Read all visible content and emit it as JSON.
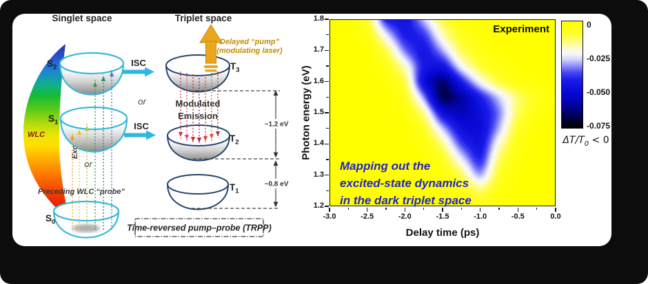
{
  "diagram": {
    "singlet_title": "Singlet space",
    "triplet_title": "Triplet space",
    "isc_label": "ISC",
    "or_label": "or",
    "wlc_label": "WLC",
    "excitation_label": "Excitation",
    "preceding_probe_label": "Preceding WLC “probe”",
    "delayed_pump_line1": "Delayed “pump”",
    "delayed_pump_line2": "(modulating laser)",
    "modulated_line1": "Modulated",
    "modulated_line2": "Emission",
    "gap_t3_t2_label": "~1.2 eV",
    "gap_t2_t1_label": "~0.8 eV",
    "trpp_label": "Time-reversed pump–probe (TRPP)",
    "states": {
      "s2": {
        "base": "S",
        "sub": "2"
      },
      "s1": {
        "base": "S",
        "sub": "1"
      },
      "s0": {
        "base": "S",
        "sub": "0"
      },
      "t3": {
        "base": "T",
        "sub": "3"
      },
      "t2": {
        "base": "T",
        "sub": "2"
      },
      "t1": {
        "base": "T",
        "sub": "1"
      }
    },
    "excitation_rays": [
      {
        "x": 105,
        "y_from": 334,
        "y_to": 197,
        "color": "#f59b22"
      },
      {
        "x": 115,
        "y_from": 334,
        "y_to": 190,
        "color": "#efc31c"
      },
      {
        "x": 126,
        "y_from": 334,
        "y_to": 184,
        "color": "#a6c832"
      },
      {
        "x": 138,
        "y_from": 334,
        "y_to": 120,
        "color": "#2f9e44"
      },
      {
        "x": 150,
        "y_from": 334,
        "y_to": 112,
        "color": "#1f8a70"
      },
      {
        "x": 162,
        "y_from": 334,
        "y_to": 105,
        "color": "#4f74c9"
      }
    ],
    "emission_rays": [
      {
        "x": 262,
        "y_from": 104,
        "y_to": 198,
        "color": "#cc3b3b"
      },
      {
        "x": 271,
        "y_from": 106,
        "y_to": 202,
        "color": "#e0447a"
      },
      {
        "x": 280,
        "y_from": 108,
        "y_to": 205,
        "color": "#d62828"
      },
      {
        "x": 289,
        "y_from": 109,
        "y_to": 206,
        "color": "#c2185b"
      },
      {
        "x": 298,
        "y_from": 108,
        "y_to": 204,
        "color": "#e53935"
      },
      {
        "x": 307,
        "y_from": 106,
        "y_to": 201,
        "color": "#e2574c"
      },
      {
        "x": 316,
        "y_from": 104,
        "y_to": 197,
        "color": "#b03030"
      }
    ]
  },
  "chart": {
    "corner_label": "Experiment",
    "x_title": "Delay time (ps)",
    "y_title": "Photon energy (eV)",
    "x_ticks": [
      "-3.0",
      "-2.5",
      "-2.0",
      "-1.5",
      "-1.0",
      "-0.5",
      "0.0"
    ],
    "y_ticks": [
      "1.8",
      "1.7",
      "1.6",
      "1.5",
      "1.4",
      "1.3",
      "1.2"
    ],
    "colorbar_ticks": [
      "0",
      "-0.025",
      "-0.050",
      "-0.075"
    ],
    "colorbar_title": {
      "main": "ΔT/T",
      "sub": "0",
      "rest": " < 0"
    },
    "annotation_lines": [
      "Mapping out the",
      "excited-state dynamics",
      "in the dark triplet space"
    ]
  },
  "chart_data": {
    "type": "heatmap",
    "title": "Experiment",
    "xlabel": "Delay time (ps)",
    "ylabel": "Photon energy (eV)",
    "xlim": [
      -3.0,
      0.0
    ],
    "ylim": [
      1.2,
      1.8
    ],
    "grid": false,
    "colorbar": {
      "label": "ΔT/T₀ < 0",
      "ticks": [
        0,
        -0.025,
        -0.05,
        -0.075
      ],
      "range": [
        0,
        -0.075
      ]
    },
    "x": [
      -3.0,
      -2.75,
      -2.5,
      -2.25,
      -2.0,
      -1.75,
      -1.5,
      -1.25,
      -1.0,
      -0.75,
      -0.5,
      -0.25,
      0.0
    ],
    "y": [
      1.8,
      1.75,
      1.7,
      1.65,
      1.6,
      1.55,
      1.5,
      1.45,
      1.4,
      1.35,
      1.3,
      1.25,
      1.2
    ],
    "z_order": "rows follow y (1.8 to 1.2 top-to-bottom), columns follow x (-3.0 to 0.0 left-to-right)",
    "z": [
      [
        0,
        0,
        -0.008,
        -0.042,
        -0.046,
        -0.028,
        -0.01,
        -0.003,
        0,
        0,
        0,
        0,
        0
      ],
      [
        0,
        0,
        -0.003,
        -0.024,
        -0.044,
        -0.04,
        -0.018,
        -0.006,
        -0.002,
        0,
        0,
        0,
        0
      ],
      [
        0,
        0,
        0,
        -0.01,
        -0.034,
        -0.046,
        -0.03,
        -0.011,
        -0.004,
        -0.001,
        0,
        0,
        0
      ],
      [
        0,
        0,
        0,
        -0.004,
        -0.018,
        -0.044,
        -0.046,
        -0.022,
        -0.009,
        -0.003,
        -0.001,
        0,
        0
      ],
      [
        0,
        0,
        0,
        -0.001,
        -0.009,
        -0.05,
        -0.068,
        -0.042,
        -0.022,
        -0.009,
        -0.003,
        -0.001,
        0
      ],
      [
        0,
        0,
        0,
        0,
        -0.005,
        -0.03,
        -0.072,
        -0.06,
        -0.043,
        -0.028,
        -0.014,
        -0.006,
        -0.001
      ],
      [
        0,
        0,
        0,
        0,
        -0.002,
        -0.014,
        -0.048,
        -0.056,
        -0.048,
        -0.034,
        -0.012,
        -0.003,
        0
      ],
      [
        0,
        0,
        0,
        0,
        0,
        -0.006,
        -0.028,
        -0.048,
        -0.05,
        -0.03,
        -0.007,
        -0.001,
        0
      ],
      [
        0,
        0,
        0,
        0,
        0,
        -0.002,
        -0.014,
        -0.038,
        -0.048,
        -0.02,
        -0.004,
        0,
        0
      ],
      [
        0,
        0,
        0,
        0,
        0,
        0,
        -0.006,
        -0.024,
        -0.044,
        -0.012,
        -0.002,
        0,
        0
      ],
      [
        0,
        0,
        0,
        0,
        0,
        0,
        -0.002,
        -0.011,
        -0.034,
        -0.007,
        -0.001,
        0,
        0
      ],
      [
        0,
        0,
        0,
        0,
        0,
        0,
        0,
        -0.004,
        -0.014,
        -0.004,
        0,
        0,
        0
      ],
      [
        0,
        0,
        0,
        0,
        0,
        0,
        0,
        -0.001,
        -0.004,
        -0.002,
        0,
        0,
        0
      ]
    ],
    "colormap": [
      [
        0,
        255,
        255,
        0
      ],
      [
        -0.008,
        255,
        255,
        40
      ],
      [
        -0.014,
        255,
        252,
        120
      ],
      [
        -0.019,
        252,
        252,
        205
      ],
      [
        -0.023,
        246,
        246,
        255
      ],
      [
        -0.027,
        210,
        210,
        252
      ],
      [
        -0.031,
        148,
        148,
        250
      ],
      [
        -0.036,
        72,
        72,
        243
      ],
      [
        -0.041,
        28,
        28,
        234
      ],
      [
        -0.05,
        8,
        8,
        212
      ],
      [
        -0.058,
        3,
        3,
        168
      ],
      [
        -0.064,
        1,
        1,
        108
      ],
      [
        -0.069,
        0,
        0,
        56
      ],
      [
        -0.075,
        0,
        0,
        0
      ]
    ]
  },
  "colors": {
    "singlet_bowl": "#36b9dc",
    "triplet_bowl": "#24466b",
    "isc_arrow": "#2eb7e3",
    "pump_arrow": "#eaa71e",
    "pump_text": "#c28d00",
    "annotation_text": "#2222cc",
    "wlc_text": "#8f1800",
    "heatmap_background": "#ffff00"
  }
}
